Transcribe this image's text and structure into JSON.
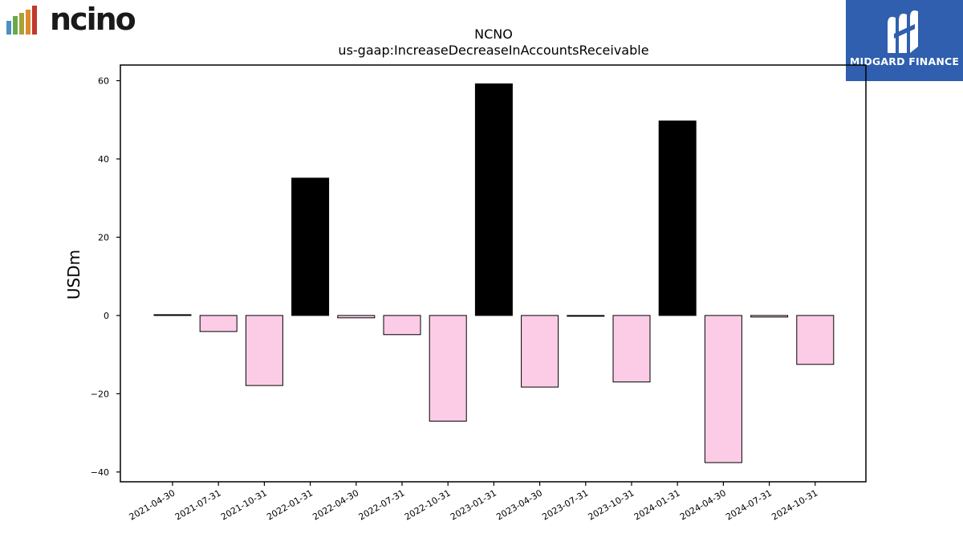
{
  "logos": {
    "left_brand": "ncino",
    "right_brand": "MIDGARD FINANCE"
  },
  "chart_data": {
    "type": "bar",
    "title": "NCNO",
    "subtitle": "us-gaap:IncreaseDecreaseInAccountsReceivable",
    "xlabel": "",
    "ylabel": "USDm",
    "ylim": [
      -42.5,
      64
    ],
    "yticks": [
      -40,
      -20,
      0,
      20,
      40,
      60
    ],
    "ytick_labels": [
      "−40",
      "−20",
      "0",
      "20",
      "40",
      "60"
    ],
    "categories": [
      "2021-04-30",
      "2021-07-31",
      "2021-10-31",
      "2022-01-31",
      "2022-04-30",
      "2022-07-31",
      "2022-10-31",
      "2023-01-31",
      "2023-04-30",
      "2023-07-31",
      "2023-10-31",
      "2024-01-31",
      "2024-04-30",
      "2024-07-31",
      "2024-10-31"
    ],
    "values": [
      0.2,
      -4.1,
      -17.9,
      35.1,
      -0.6,
      -4.9,
      -27.0,
      59.2,
      -18.3,
      -0.2,
      -17.0,
      49.7,
      -37.6,
      -0.4,
      -12.5
    ],
    "colors": {
      "positive": "#000000",
      "negative": "#fccce6",
      "edge": "#000000"
    },
    "grid": false
  }
}
